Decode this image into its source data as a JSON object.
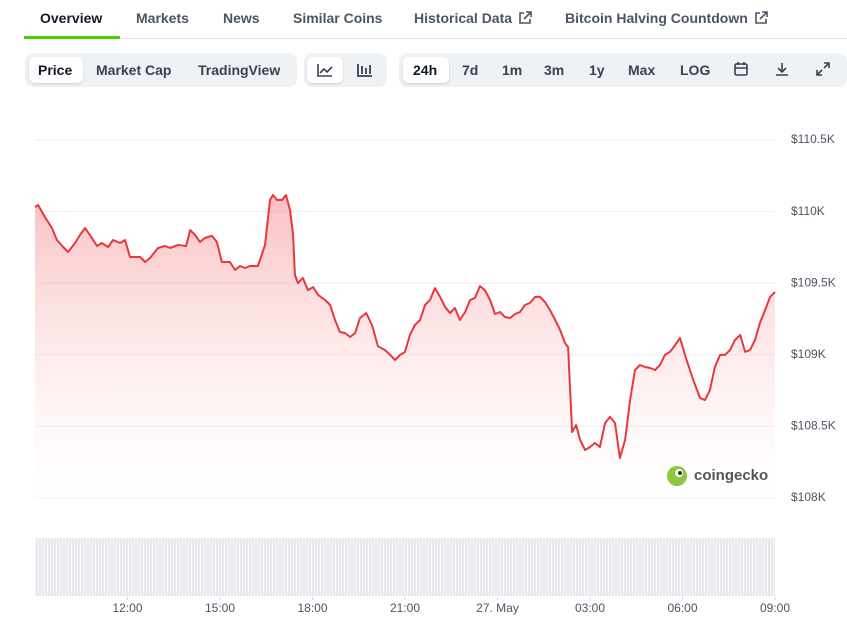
{
  "tabs": [
    "Overview",
    "Markets",
    "News",
    "Similar Coins",
    "Historical Data",
    "Bitcoin Halving Countdown"
  ],
  "views": [
    "Price",
    "Market Cap",
    "TradingView"
  ],
  "ranges": [
    "24h",
    "7d",
    "1m",
    "3m",
    "1y",
    "Max",
    "LOG"
  ],
  "watermark": "coingecko",
  "chart_data": {
    "type": "line",
    "color": "#e8383d",
    "fill": true,
    "grid": true,
    "x": [
      0,
      0.1,
      0.32,
      0.55,
      0.71,
      0.91,
      1.07,
      1.3,
      1.46,
      1.62,
      1.78,
      2.01,
      2.17,
      2.37,
      2.53,
      2.76,
      2.92,
      3.08,
      3.41,
      3.57,
      3.73,
      3.99,
      4.22,
      4.38,
      4.64,
      4.9,
      5.03,
      5.19,
      5.35,
      5.51,
      5.74,
      5.9,
      6.06,
      6.32,
      6.49,
      6.65,
      6.81,
      6.97,
      7.23,
      7.46,
      7.62,
      7.72,
      7.85,
      8.01,
      8.14,
      8.27,
      8.37,
      8.43,
      8.53,
      8.69,
      8.85,
      9.02,
      9.18,
      9.41,
      9.57,
      9.73,
      9.89,
      10.05,
      10.22,
      10.38,
      10.54,
      10.74,
      10.93,
      11.12,
      11.35,
      11.52,
      11.68,
      11.84,
      12,
      12.16,
      12.32,
      12.49,
      12.65,
      12.81,
      12.97,
      13.14,
      13.3,
      13.46,
      13.62,
      13.78,
      13.95,
      14.11,
      14.27,
      14.43,
      14.59,
      14.76,
      14.92,
      15.08,
      15.24,
      15.41,
      15.57,
      15.73,
      15.89,
      16.05,
      16.22,
      16.38,
      16.54,
      16.7,
      16.87,
      17.03,
      17.19,
      17.29,
      17.42,
      17.55,
      17.68,
      17.84,
      18,
      18.16,
      18.32,
      18.49,
      18.65,
      18.81,
      18.97,
      19.14,
      19.3,
      19.46,
      19.62,
      19.78,
      19.95,
      20.11,
      20.27,
      20.43,
      20.59,
      20.76,
      20.92,
      21.08,
      21.24,
      21.41,
      21.57,
      21.73,
      21.89,
      22.05,
      22.22,
      22.38,
      22.54,
      22.7,
      22.87,
      23.03,
      23.19,
      23.35,
      23.51,
      23.68,
      23.84,
      24
    ],
    "values": [
      110032,
      110046,
      109962,
      109885,
      109802,
      109753,
      109718,
      109781,
      109837,
      109885,
      109837,
      109760,
      109781,
      109753,
      109802,
      109781,
      109802,
      109683,
      109683,
      109648,
      109676,
      109746,
      109760,
      109746,
      109767,
      109760,
      109871,
      109837,
      109788,
      109816,
      109830,
      109788,
      109648,
      109648,
      109592,
      109620,
      109606,
      109620,
      109620,
      109767,
      110081,
      110116,
      110081,
      110081,
      110116,
      110011,
      109837,
      109557,
      109501,
      109536,
      109452,
      109473,
      109418,
      109383,
      109348,
      109243,
      109159,
      109152,
      109124,
      109152,
      109257,
      109292,
      109208,
      109061,
      109033,
      108999,
      108964,
      108999,
      109020,
      109138,
      109208,
      109243,
      109348,
      109383,
      109466,
      109404,
      109334,
      109292,
      109327,
      109243,
      109299,
      109383,
      109397,
      109480,
      109452,
      109383,
      109285,
      109299,
      109264,
      109257,
      109285,
      109299,
      109348,
      109362,
      109404,
      109404,
      109369,
      109313,
      109243,
      109173,
      109082,
      109054,
      108461,
      108510,
      108405,
      108335,
      108356,
      108384,
      108356,
      108524,
      108566,
      108524,
      108279,
      108405,
      108684,
      108894,
      108929,
      108915,
      108908,
      108894,
      108929,
      108999,
      109020,
      109068,
      109117,
      108999,
      108894,
      108789,
      108698,
      108684,
      108754,
      108915,
      108999,
      108999,
      109033,
      109103,
      109138,
      109020,
      109033,
      109103,
      109222,
      109313,
      109404,
      109439
    ],
    "xlim": [
      0,
      24
    ],
    "xticks": [
      {
        "value": 3,
        "label": "12:00"
      },
      {
        "value": 6,
        "label": "15:00"
      },
      {
        "value": 9,
        "label": "18:00"
      },
      {
        "value": 12,
        "label": "21:00"
      },
      {
        "value": 15,
        "label": "27. May"
      },
      {
        "value": 18,
        "label": "03:00"
      },
      {
        "value": 21,
        "label": "06:00"
      },
      {
        "value": 24,
        "label": "09:00"
      }
    ],
    "ylim": [
      108000,
      110500
    ],
    "yticks": [
      {
        "value": 108000,
        "label": "$108K"
      },
      {
        "value": 108500,
        "label": "$108.5K"
      },
      {
        "value": 109000,
        "label": "$109K"
      },
      {
        "value": 109500,
        "label": "$109.5K"
      },
      {
        "value": 110000,
        "label": "$110K"
      },
      {
        "value": 110500,
        "label": "$110.5K"
      }
    ]
  }
}
